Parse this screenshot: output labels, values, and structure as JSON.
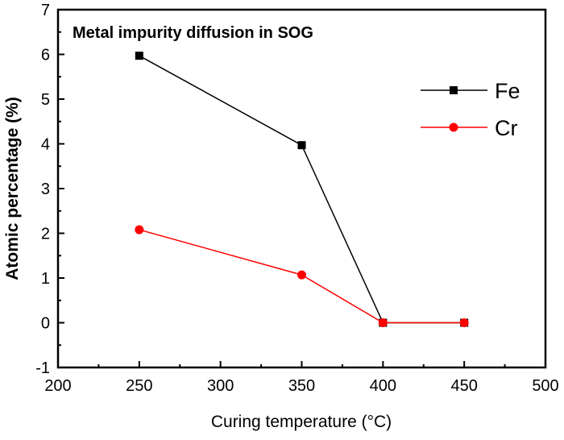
{
  "chart_data": {
    "type": "line",
    "title": "Metal impurity diffusion in SOG",
    "xlabel": "Curing temperature (°C)",
    "ylabel": "Atomic percentage (%)",
    "xlim": [
      200,
      500
    ],
    "ylim": [
      -1,
      7
    ],
    "xticks": [
      "200",
      "250",
      "300",
      "350",
      "400",
      "450",
      "500"
    ],
    "yticks": [
      "-1",
      "0",
      "1",
      "2",
      "3",
      "4",
      "5",
      "6",
      "7"
    ],
    "grid": false,
    "legend_position": "top-right",
    "x": [
      250,
      350,
      400,
      450
    ],
    "series": [
      {
        "name": "Fe",
        "values": [
          5.97,
          3.97,
          0,
          0
        ],
        "color": "#000000",
        "marker": "square"
      },
      {
        "name": "Cr",
        "values": [
          2.08,
          1.07,
          0,
          0
        ],
        "color": "#ff0000",
        "marker": "circle"
      }
    ]
  }
}
